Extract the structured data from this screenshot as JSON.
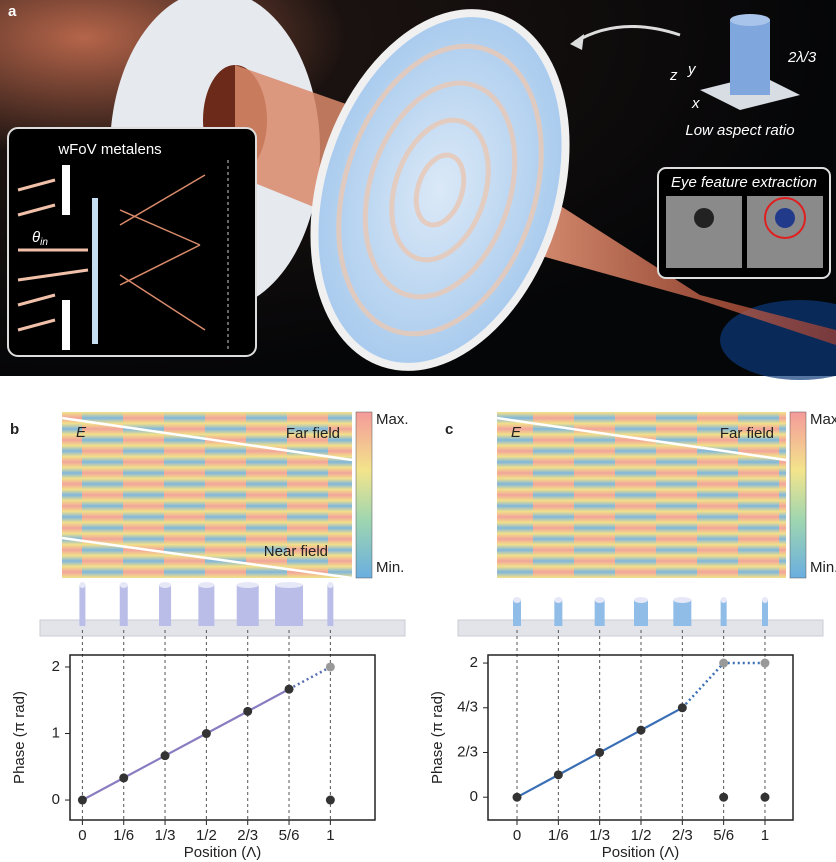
{
  "panel_a": {
    "label": "a",
    "inset_title": "wFoV metalens",
    "theta": "θ",
    "theta_sub": "in",
    "height_label": "2λ/3",
    "axis_z": "z",
    "axis_y": "y",
    "axis_x": "x",
    "caption": "Low aspect ratio",
    "eye_title": "Eye feature extraction"
  },
  "chart_data": [
    {
      "type": "line",
      "panel_label": "b",
      "xlabel": "Position (Λ)",
      "ylabel": "Phase (π rad)",
      "heatmap": {
        "source_label": "E",
        "far_label": "Far field",
        "near_label": "Near field",
        "colorbar_max": "Max.",
        "colorbar_min": "Min."
      },
      "xlim": [
        -0.05,
        1.18
      ],
      "ylim": [
        -0.3,
        2.18
      ],
      "xticks": [
        0,
        {
          "value": 0.1667,
          "label": "1/6"
        },
        {
          "value": 0.3333,
          "label": "1/3"
        },
        {
          "value": 0.5,
          "label": "1/2"
        },
        {
          "value": 0.6667,
          "label": "2/3"
        },
        {
          "value": 0.8333,
          "label": "5/6"
        },
        1
      ],
      "yticks": [
        0,
        1,
        2
      ],
      "series": [
        {
          "style": "solid",
          "color": "#8a7cc0",
          "x": [
            0,
            0.1667,
            0.3333,
            0.5,
            0.6667,
            0.8333
          ],
          "values": [
            0,
            0.333,
            0.667,
            1,
            1.333,
            1.667
          ]
        },
        {
          "style": "dotted",
          "color": "#5a6fb0",
          "x": [
            0.8333,
            1
          ],
          "values": [
            1.667,
            2
          ]
        },
        {
          "style": "markers",
          "color": "#333333",
          "x": [
            0,
            0.1667,
            0.3333,
            0.5,
            0.6667,
            0.8333,
            1
          ],
          "values": [
            0,
            0.333,
            0.667,
            1,
            1.333,
            1.667,
            0
          ]
        },
        {
          "style": "markers",
          "color": "#999999",
          "x": [
            1
          ],
          "values": [
            2
          ]
        }
      ]
    },
    {
      "type": "line",
      "panel_label": "c",
      "xlabel": "Position (Λ)",
      "ylabel": "Phase (π rad)",
      "heatmap": {
        "source_label": "E",
        "far_label": "Far field",
        "colorbar_max": "Max.",
        "colorbar_min": "Min."
      },
      "xlim": [
        -0.117,
        1.113
      ],
      "ylim": [
        -0.34,
        2.12
      ],
      "xticks": [
        0,
        {
          "value": 0.1667,
          "label": "1/6"
        },
        {
          "value": 0.3333,
          "label": "1/3"
        },
        {
          "value": 0.5,
          "label": "1/2"
        },
        {
          "value": 0.6667,
          "label": "2/3"
        },
        {
          "value": 0.8333,
          "label": "5/6"
        },
        1
      ],
      "yticks": [
        0,
        {
          "value": 0.6667,
          "label": "2/3"
        },
        {
          "value": 1.3333,
          "label": "4/3"
        },
        2
      ],
      "series": [
        {
          "style": "solid",
          "color": "#3b6fb5",
          "x": [
            0,
            0.1667,
            0.3333,
            0.5,
            0.6667
          ],
          "values": [
            0,
            0.333,
            0.667,
            1,
            1.333
          ]
        },
        {
          "style": "dotted",
          "color": "#3b6fb5",
          "x": [
            0.6667,
            0.8333,
            1
          ],
          "values": [
            1.333,
            2,
            2
          ]
        },
        {
          "style": "markers",
          "color": "#333333",
          "x": [
            0,
            0.1667,
            0.3333,
            0.5,
            0.6667,
            0.8333,
            1
          ],
          "values": [
            0,
            0.333,
            0.667,
            1,
            1.333,
            0,
            0
          ]
        },
        {
          "style": "markers",
          "color": "#999999",
          "x": [
            0.8333,
            1
          ],
          "values": [
            2,
            2
          ]
        }
      ]
    }
  ]
}
